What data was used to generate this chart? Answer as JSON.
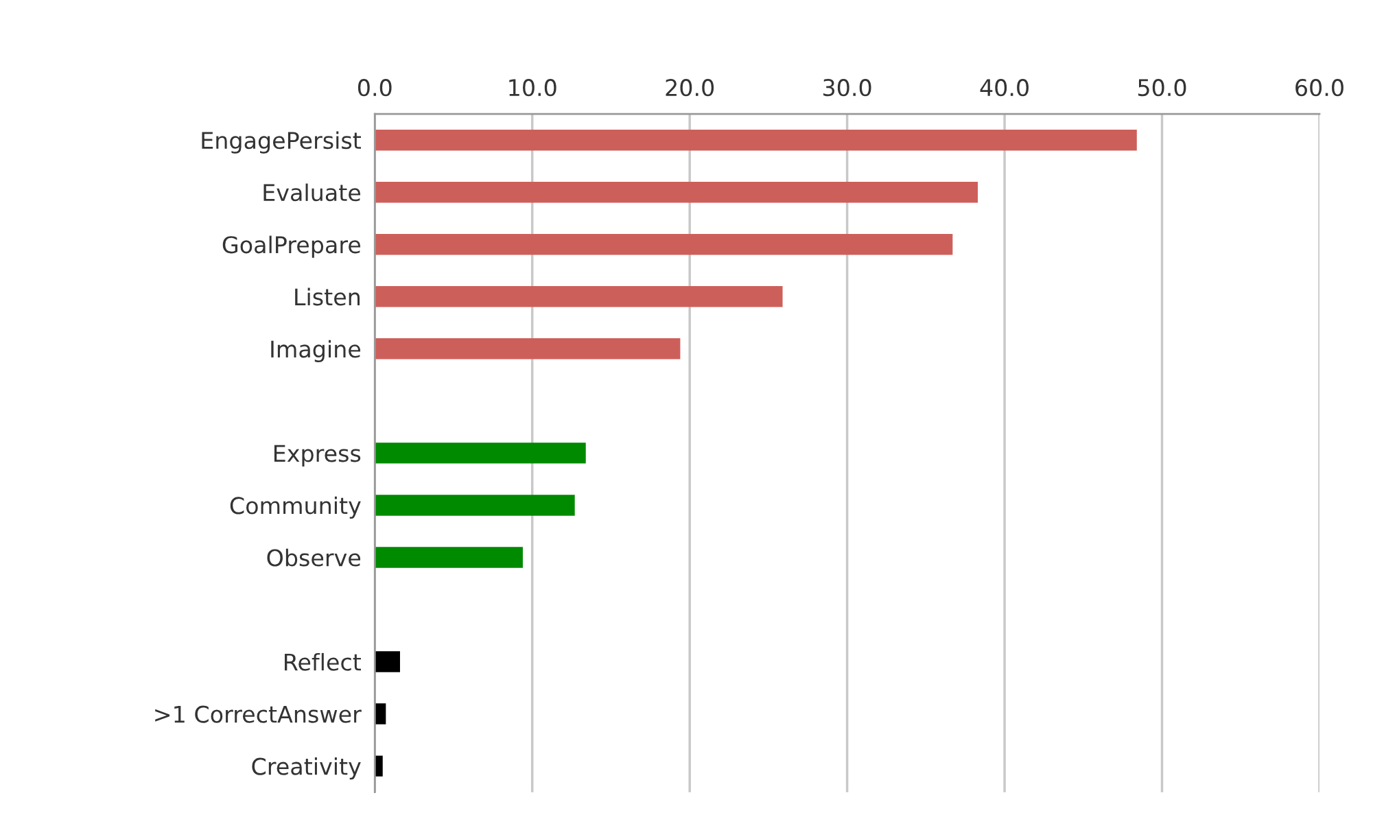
{
  "chart_data": {
    "type": "bar",
    "orientation": "horizontal",
    "categories": [
      "EngagePersist",
      "Evaluate",
      "GoalPrepare",
      "Listen",
      "Imagine",
      null,
      "Express",
      "Community",
      "Observe",
      null,
      "Reflect",
      ">1 CorrectAnswer",
      "Creativity"
    ],
    "values": [
      48.4,
      38.3,
      36.7,
      25.9,
      19.4,
      null,
      13.4,
      12.7,
      9.4,
      null,
      1.6,
      0.7,
      0.5
    ],
    "colors": [
      "#cd5f5a",
      "#cd5f5a",
      "#cd5f5a",
      "#cd5f5a",
      "#cd5f5a",
      null,
      "#008a00",
      "#008a00",
      "#008a00",
      null,
      "#000000",
      "#000000",
      "#000000"
    ],
    "xlim": [
      0,
      60
    ],
    "xticks": [
      {
        "value": 0,
        "label": "0.0"
      },
      {
        "value": 10,
        "label": "10.0"
      },
      {
        "value": 20,
        "label": "20.0"
      },
      {
        "value": 30,
        "label": "30.0"
      },
      {
        "value": 40,
        "label": "40.0"
      },
      {
        "value": 50,
        "label": "50.0"
      },
      {
        "value": 60,
        "label": "60.0"
      }
    ],
    "grid": "x"
  }
}
